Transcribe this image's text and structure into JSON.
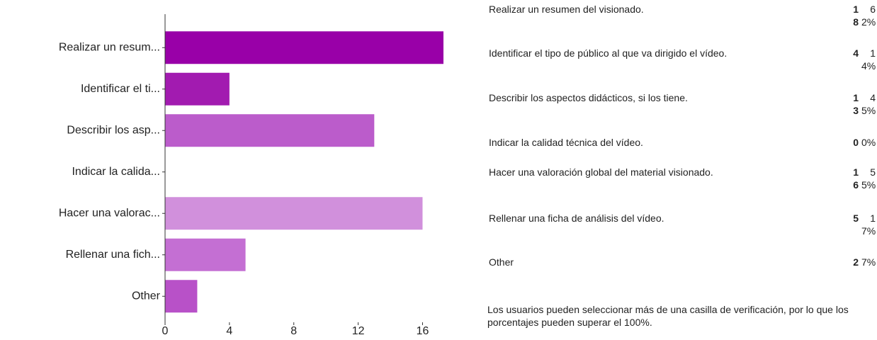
{
  "chart_data": {
    "type": "barh",
    "categories": [
      "Realizar un resum...",
      "Identificar el ti...",
      "Describir los asp...",
      "Indicar la calida...",
      "Hacer una valorac...",
      "Rellenar una fich...",
      "Other"
    ],
    "values": [
      18,
      4,
      13,
      0,
      16,
      5,
      2
    ],
    "colors": [
      "#9900a8",
      "#a21bb0",
      "#bb5ccb",
      "#c46fd3",
      "#d190dc",
      "#c46fd3",
      "#b851c8"
    ],
    "xlim": [
      0,
      17.3
    ],
    "xticks": [
      0,
      4,
      8,
      12,
      16
    ],
    "grid": false
  },
  "table": {
    "rows": [
      [
        "Realizar un resumen del visionado.",
        18,
        "62%"
      ],
      [
        "Identificar el tipo de público al que va dirigido el vídeo.",
        4,
        "14%"
      ],
      [
        "Describir los aspectos didácticos, si los tiene.",
        13,
        "45%"
      ],
      [
        "Indicar la calidad técnica del vídeo.",
        0,
        "0%"
      ],
      [
        "Hacer una valoración global del material visionado.",
        16,
        "55%"
      ],
      [
        "Rellenar una ficha de análisis del vídeo.",
        5,
        "17%"
      ],
      [
        "Other",
        2,
        "7%"
      ]
    ],
    "note": "Los usuarios pueden seleccionar más de una casilla de verificación, por lo que los porcentajes pueden superar el 100%."
  }
}
